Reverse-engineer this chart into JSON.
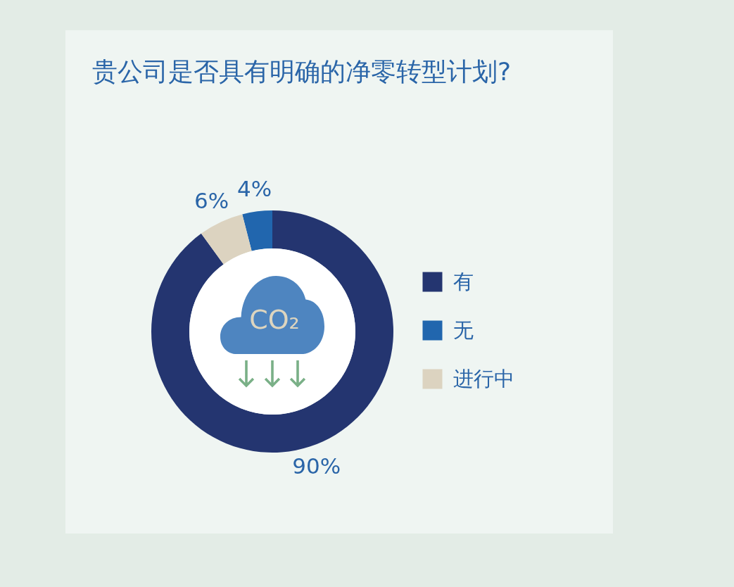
{
  "chart_data": {
    "type": "donut",
    "title": "贵公司是否具有明确的净零转型计划?",
    "categories": [
      "有",
      "无",
      "进行中"
    ],
    "values": [
      90,
      4,
      6
    ],
    "colors": [
      "#243570",
      "#2166ae",
      "#dcd3c0"
    ],
    "value_labels": [
      "90%",
      "4%",
      "6%"
    ],
    "legend": "right",
    "annotations": [
      "CO₂"
    ]
  }
}
